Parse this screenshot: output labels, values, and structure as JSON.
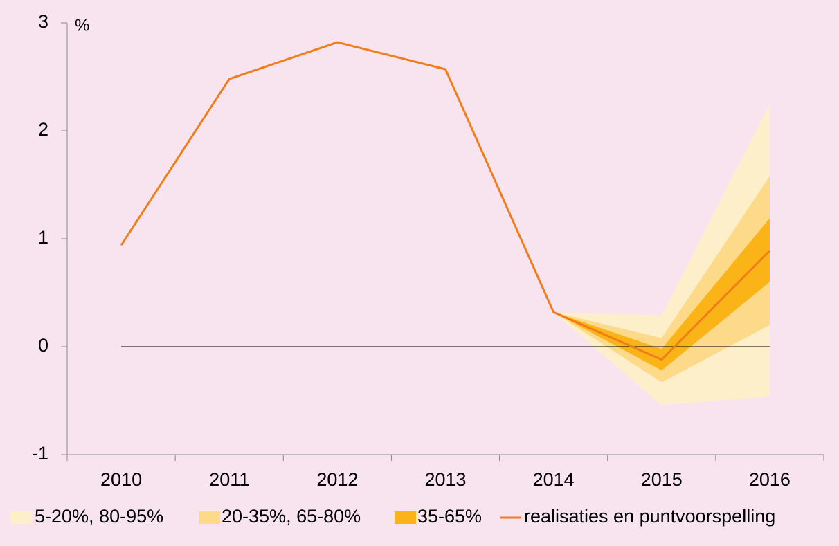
{
  "chart_data": {
    "type": "fan",
    "y_unit": "%",
    "categories": [
      "2010",
      "2011",
      "2012",
      "2013",
      "2014",
      "2015",
      "2016"
    ],
    "ylim": [
      -1,
      3
    ],
    "yticks": [
      -1,
      0,
      1,
      2,
      3
    ],
    "bands": [
      {
        "name": "5-20%, 80-95%",
        "color": "#feefcb",
        "lower": [
          null,
          null,
          null,
          null,
          0.32,
          -0.54,
          -0.46
        ],
        "upper": [
          null,
          null,
          null,
          null,
          0.32,
          0.29,
          2.25
        ]
      },
      {
        "name": "20-35%, 65-80%",
        "color": "#fdd98a",
        "lower": [
          null,
          null,
          null,
          null,
          0.32,
          -0.33,
          0.2
        ],
        "upper": [
          null,
          null,
          null,
          null,
          0.32,
          0.08,
          1.58
        ]
      },
      {
        "name": "35-65%",
        "color": "#fbb418",
        "lower": [
          null,
          null,
          null,
          null,
          0.32,
          -0.22,
          0.6
        ],
        "upper": [
          null,
          null,
          null,
          null,
          0.32,
          -0.02,
          1.19
        ]
      }
    ],
    "series": [
      {
        "name": "realisaties en puntvoorspelling",
        "color": "#f07d1a",
        "values": [
          0.94,
          2.48,
          2.82,
          2.57,
          0.32,
          -0.12,
          0.89
        ]
      }
    ]
  }
}
